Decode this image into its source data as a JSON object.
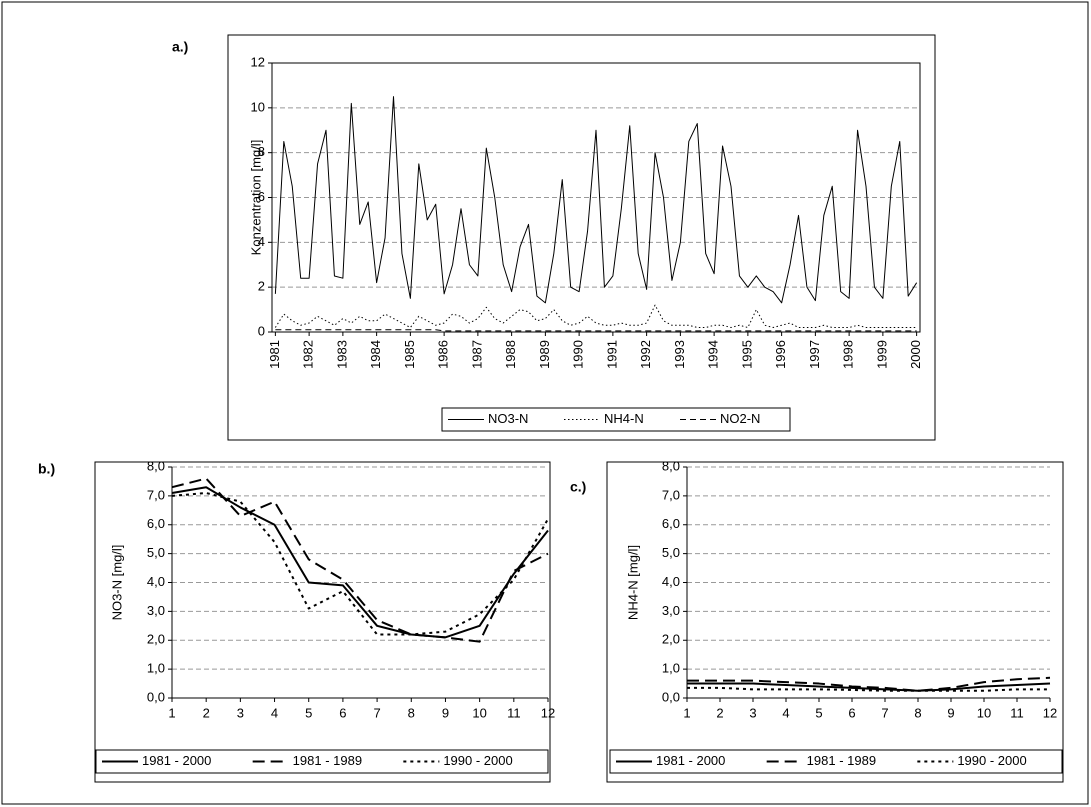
{
  "chart_data": [
    {
      "type": "line",
      "panel": "a.)",
      "ylabel": "Konzentration [mg/l]",
      "x": [
        1981,
        1981.25,
        1981.5,
        1981.75,
        1982,
        1982.25,
        1982.5,
        1982.75,
        1983,
        1983.25,
        1983.5,
        1983.75,
        1984,
        1984.25,
        1984.5,
        1984.75,
        1985,
        1985.25,
        1985.5,
        1985.75,
        1986,
        1986.25,
        1986.5,
        1986.75,
        1987,
        1987.25,
        1987.5,
        1987.75,
        1988,
        1988.25,
        1988.5,
        1988.75,
        1989,
        1989.25,
        1989.5,
        1989.75,
        1990,
        1990.25,
        1990.5,
        1990.75,
        1991,
        1991.25,
        1991.5,
        1991.75,
        1992,
        1992.25,
        1992.5,
        1992.75,
        1993,
        1993.25,
        1993.5,
        1993.75,
        1994,
        1994.25,
        1994.5,
        1994.75,
        1995,
        1995.25,
        1995.5,
        1995.75,
        1996,
        1996.25,
        1996.5,
        1996.75,
        1997,
        1997.25,
        1997.5,
        1997.75,
        1998,
        1998.25,
        1998.5,
        1998.75,
        1999,
        1999.25,
        1999.5,
        1999.75,
        2000
      ],
      "series": [
        {
          "name": "NO3-N",
          "color": "#000000",
          "dash": "solid",
          "values": [
            1.7,
            8.5,
            6.5,
            2.4,
            2.4,
            7.5,
            9.0,
            2.5,
            2.4,
            10.2,
            4.8,
            5.8,
            2.2,
            4.2,
            10.5,
            3.5,
            1.5,
            7.5,
            5.0,
            5.7,
            1.7,
            3.0,
            5.5,
            3.0,
            2.5,
            8.2,
            6.0,
            3.0,
            1.8,
            3.8,
            4.8,
            1.6,
            1.3,
            3.5,
            6.8,
            2.0,
            1.8,
            4.5,
            9.0,
            2.0,
            2.5,
            5.5,
            9.2,
            3.5,
            1.9,
            8.0,
            6.0,
            2.3,
            4.0,
            8.5,
            9.3,
            3.5,
            2.6,
            8.3,
            6.5,
            2.5,
            2.0,
            2.5,
            2.0,
            1.8,
            1.3,
            3.0,
            5.2,
            2.0,
            1.4,
            5.2,
            6.5,
            1.8,
            1.5,
            9.0,
            6.5,
            2.0,
            1.5,
            6.5,
            8.5,
            1.6,
            2.2
          ]
        },
        {
          "name": "NH4-N",
          "color": "#000000",
          "dash": "dotted",
          "values": [
            0.2,
            0.8,
            0.5,
            0.3,
            0.4,
            0.7,
            0.5,
            0.3,
            0.6,
            0.4,
            0.7,
            0.5,
            0.5,
            0.8,
            0.6,
            0.4,
            0.2,
            0.7,
            0.5,
            0.3,
            0.4,
            0.8,
            0.7,
            0.4,
            0.6,
            1.1,
            0.6,
            0.4,
            0.7,
            1.0,
            0.9,
            0.5,
            0.6,
            1.0,
            0.5,
            0.3,
            0.4,
            0.7,
            0.4,
            0.3,
            0.3,
            0.4,
            0.3,
            0.3,
            0.4,
            1.2,
            0.5,
            0.3,
            0.3,
            0.3,
            0.2,
            0.2,
            0.3,
            0.3,
            0.2,
            0.3,
            0.2,
            1.0,
            0.3,
            0.2,
            0.3,
            0.4,
            0.2,
            0.2,
            0.2,
            0.3,
            0.2,
            0.2,
            0.2,
            0.3,
            0.2,
            0.2,
            0.2,
            0.2,
            0.2,
            0.2,
            0.2
          ]
        },
        {
          "name": "NO2-N",
          "color": "#000000",
          "dash": "dashed",
          "values": [
            0.1,
            0.1,
            0.1,
            0.1,
            0.1,
            0.1,
            0.1,
            0.1,
            0.1,
            0.1,
            0.1,
            0.1,
            0.1,
            0.1,
            0.1,
            0.1,
            0.1,
            0.1,
            0.1,
            0.1,
            0.05,
            0.05,
            0.05,
            0.05,
            0.05,
            0.05,
            0.05,
            0.05,
            0.05,
            0.05,
            0.05,
            0.05,
            0.05,
            0.05,
            0.05,
            0.05,
            0.05,
            0.05,
            0.05,
            0.05,
            0.05,
            0.05,
            0.05,
            0.05,
            0.05,
            0.05,
            0.05,
            0.05,
            0.05,
            0.05,
            0.05,
            0.05,
            0.05,
            0.05,
            0.05,
            0.05,
            0.05,
            0.05,
            0.05,
            0.05,
            0.05,
            0.05,
            0.05,
            0.05,
            0.05,
            0.05,
            0.05,
            0.05,
            0.05,
            0.05,
            0.05,
            0.05,
            0.05,
            0.05,
            0.05,
            0.05,
            0.05
          ]
        }
      ],
      "xlim": [
        1980.9,
        2000.1
      ],
      "xticks": [
        1981,
        1982,
        1983,
        1984,
        1985,
        1986,
        1987,
        1988,
        1989,
        1990,
        1991,
        1992,
        1993,
        1994,
        1995,
        1996,
        1997,
        1998,
        1999,
        2000
      ],
      "ylim": [
        0,
        12
      ],
      "yticks": [
        0,
        2,
        4,
        6,
        8,
        10,
        12
      ],
      "grid": true
    },
    {
      "type": "line",
      "panel": "b.)",
      "ylabel": "NO3-N [mg/l]",
      "categories": [
        "1",
        "2",
        "3",
        "4",
        "5",
        "6",
        "7",
        "8",
        "9",
        "10",
        "11",
        "12"
      ],
      "series": [
        {
          "name": "1981 - 2000",
          "color": "#000000",
          "dash": "solid",
          "values": [
            7.1,
            7.3,
            6.6,
            6.0,
            4.0,
            3.9,
            2.5,
            2.2,
            2.1,
            2.5,
            4.3,
            5.8
          ]
        },
        {
          "name": "1981 - 1989",
          "color": "#000000",
          "dash": "dashed",
          "values": [
            7.3,
            7.6,
            6.3,
            6.8,
            4.8,
            4.1,
            2.7,
            2.2,
            2.1,
            1.95,
            4.4,
            5.0
          ]
        },
        {
          "name": "1990 - 2000",
          "color": "#000000",
          "dash": "dotted",
          "values": [
            7.0,
            7.1,
            6.8,
            5.4,
            3.1,
            3.7,
            2.2,
            2.2,
            2.3,
            2.9,
            4.1,
            6.2
          ]
        }
      ],
      "ylim": [
        0,
        8
      ],
      "yticks": [
        {
          "value": 0,
          "label": "0,0"
        },
        {
          "value": 1,
          "label": "1,0"
        },
        {
          "value": 2,
          "label": "2,0"
        },
        {
          "value": 3,
          "label": "3,0"
        },
        {
          "value": 4,
          "label": "4,0"
        },
        {
          "value": 5,
          "label": "5,0"
        },
        {
          "value": 6,
          "label": "6,0"
        },
        {
          "value": 7,
          "label": "7,0"
        },
        {
          "value": 8,
          "label": "8,0"
        }
      ],
      "grid": true
    },
    {
      "type": "line",
      "panel": "c.)",
      "ylabel": "NH4-N [mg/l]",
      "categories": [
        "1",
        "2",
        "3",
        "4",
        "5",
        "6",
        "7",
        "8",
        "9",
        "10",
        "11",
        "12"
      ],
      "series": [
        {
          "name": "1981 - 2000",
          "color": "#000000",
          "dash": "solid",
          "values": [
            0.5,
            0.5,
            0.5,
            0.45,
            0.4,
            0.35,
            0.3,
            0.25,
            0.3,
            0.4,
            0.45,
            0.5
          ]
        },
        {
          "name": "1981 - 1989",
          "color": "#000000",
          "dash": "dashed",
          "values": [
            0.6,
            0.6,
            0.6,
            0.55,
            0.5,
            0.4,
            0.35,
            0.25,
            0.35,
            0.55,
            0.65,
            0.7
          ]
        },
        {
          "name": "1990 - 2000",
          "color": "#000000",
          "dash": "dotted",
          "values": [
            0.35,
            0.35,
            0.3,
            0.3,
            0.3,
            0.28,
            0.25,
            0.25,
            0.25,
            0.25,
            0.3,
            0.3
          ]
        }
      ],
      "ylim": [
        0,
        8
      ],
      "yticks": [
        {
          "value": 0,
          "label": "0,0"
        },
        {
          "value": 1,
          "label": "1,0"
        },
        {
          "value": 2,
          "label": "2,0"
        },
        {
          "value": 3,
          "label": "3,0"
        },
        {
          "value": 4,
          "label": "4,0"
        },
        {
          "value": 5,
          "label": "5,0"
        },
        {
          "value": 6,
          "label": "6,0"
        },
        {
          "value": 7,
          "label": "7,0"
        },
        {
          "value": 8,
          "label": "8,0"
        }
      ],
      "grid": true
    }
  ]
}
